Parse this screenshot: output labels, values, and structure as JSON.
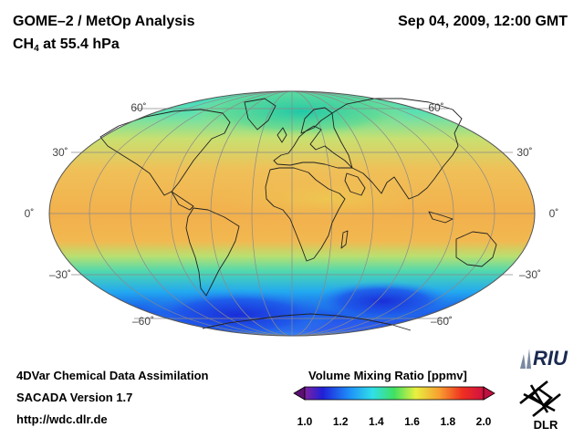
{
  "header": {
    "title": "GOME–2 / MetOp Analysis",
    "datetime": "Sep 04, 2009, 12:00 GMT",
    "species": "CH",
    "species_sub": "4",
    "level": " at 55.4 hPa"
  },
  "map": {
    "projection": "Mollweide",
    "lat_labels": {
      "n60": "60˚",
      "n30": "30˚",
      "eq": "0˚",
      "s30": "–30˚",
      "s60": "–60˚"
    }
  },
  "colorbar": {
    "title": "Volume Mixing Ratio [ppmv]",
    "ticks": [
      "1.0",
      "1.2",
      "1.4",
      "1.6",
      "1.8",
      "2.0"
    ],
    "min": 1.0,
    "max": 2.0
  },
  "footer": {
    "line1": "4DVar Chemical Data Assimilation",
    "line2": "SACADA Version 1.7",
    "line3": "http://wdc.dlr.de"
  },
  "logos": {
    "riu": "RIU",
    "dlr": "DLR"
  },
  "colors": {
    "ocean_mid": "#f0b450",
    "polar_low": "#1a3fe0",
    "contour": "#222222",
    "grid": "#8a8a8a"
  }
}
